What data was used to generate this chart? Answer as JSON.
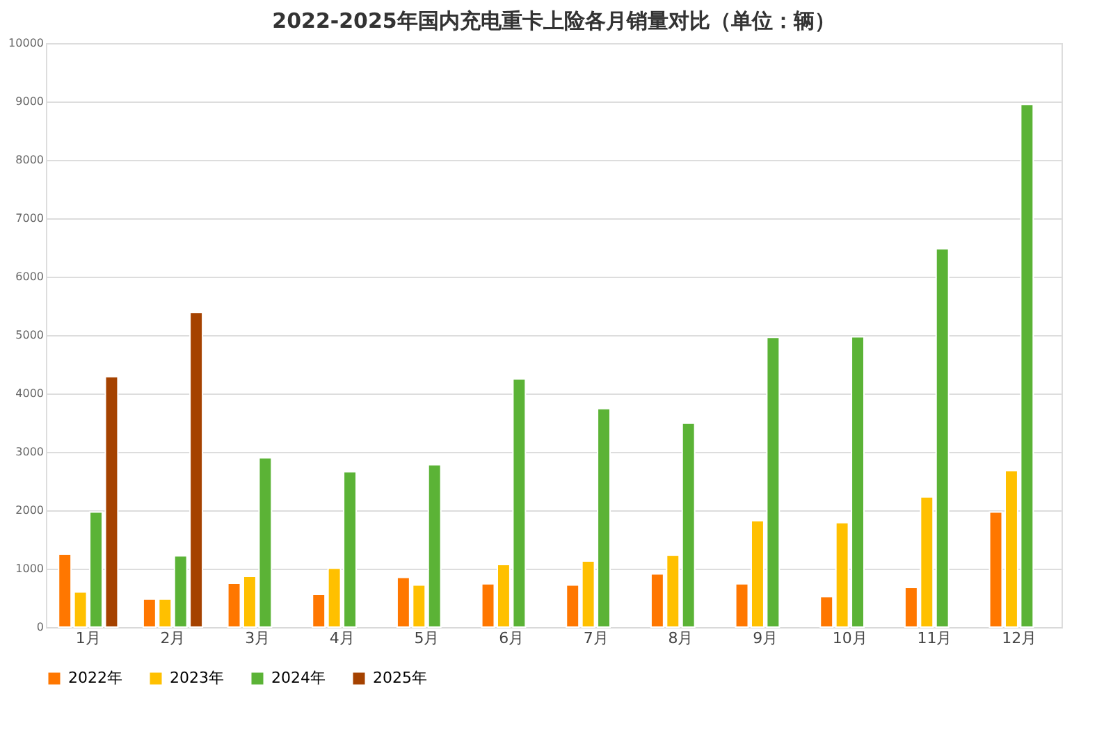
{
  "chart_data": {
    "type": "bar",
    "title": "2022-2025年国内充电重卡上险各月销量对比（单位：辆）",
    "categories": [
      "1月",
      "2月",
      "3月",
      "4月",
      "5月",
      "6月",
      "7月",
      "8月",
      "9月",
      "10月",
      "11月",
      "12月"
    ],
    "series": [
      {
        "name": "2022年",
        "color": "#ff7700",
        "values": [
          1250,
          480,
          750,
          560,
          850,
          740,
          720,
          910,
          740,
          520,
          680,
          1970
        ]
      },
      {
        "name": "2023年",
        "color": "#ffc000",
        "values": [
          600,
          480,
          870,
          1010,
          720,
          1070,
          1130,
          1230,
          1820,
          1790,
          2230,
          2680
        ]
      },
      {
        "name": "2024年",
        "color": "#5bb336",
        "values": [
          1970,
          1220,
          2900,
          2660,
          2780,
          4250,
          3740,
          3490,
          4960,
          4970,
          6480,
          8950
        ]
      },
      {
        "name": "2025年",
        "color": "#a54200",
        "values": [
          4290,
          5390,
          null,
          null,
          null,
          null,
          null,
          null,
          null,
          null,
          null,
          null
        ]
      }
    ],
    "ylim": [
      0,
      10000
    ],
    "yticks": [
      0,
      1000,
      2000,
      3000,
      4000,
      5000,
      6000,
      7000,
      8000,
      9000,
      10000
    ],
    "grid": "y",
    "legend": "bottom"
  }
}
